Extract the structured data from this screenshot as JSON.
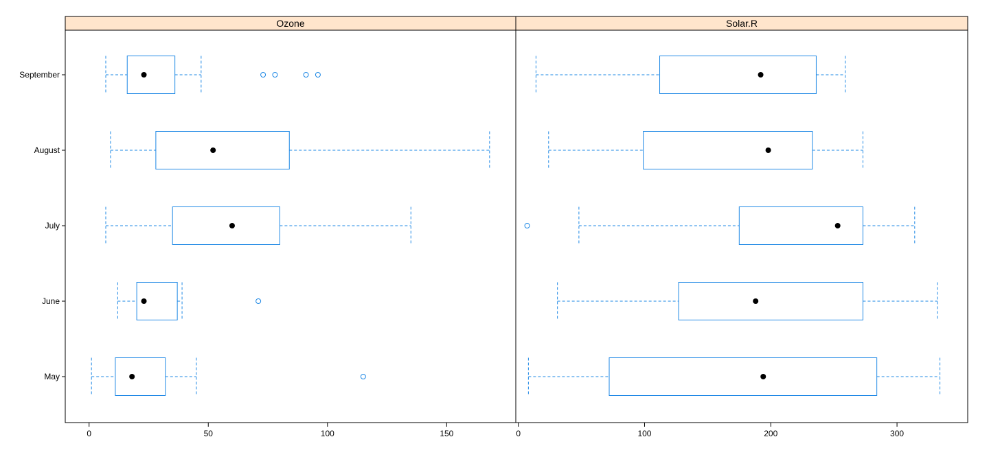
{
  "chart_data": {
    "type": "boxplot",
    "categories": [
      "May",
      "June",
      "July",
      "August",
      "September"
    ],
    "colors": {
      "box": "#1e88e5",
      "strip": "#ffe5cc",
      "median": "#000000"
    },
    "panels": [
      {
        "title": "Ozone",
        "xlim": [
          -10,
          179
        ],
        "ticks": [
          0,
          50,
          100,
          150
        ],
        "tick_labels": [
          "0",
          "50",
          "100",
          "150"
        ],
        "boxes": [
          {
            "category": "May",
            "min": 1,
            "q1": 11,
            "median": 18,
            "q3": 32,
            "max": 45,
            "outliers": [
              115
            ]
          },
          {
            "category": "June",
            "min": 12,
            "q1": 20,
            "median": 23,
            "q3": 37,
            "max": 39,
            "outliers": [
              71
            ]
          },
          {
            "category": "July",
            "min": 7,
            "q1": 35,
            "median": 60,
            "q3": 80,
            "max": 135,
            "outliers": []
          },
          {
            "category": "August",
            "min": 9,
            "q1": 28,
            "median": 52,
            "q3": 84,
            "max": 168,
            "outliers": []
          },
          {
            "category": "September",
            "min": 7,
            "q1": 16,
            "median": 23,
            "q3": 36,
            "max": 47,
            "outliers": [
              73,
              78,
              91,
              96
            ]
          }
        ]
      },
      {
        "title": "Solar.R",
        "xlim": [
          -2,
          356
        ],
        "ticks": [
          0,
          100,
          200,
          300
        ],
        "tick_labels": [
          "0",
          "100",
          "200",
          "300"
        ],
        "boxes": [
          {
            "category": "May",
            "min": 8,
            "q1": 72,
            "median": 194,
            "q3": 284,
            "max": 334,
            "outliers": []
          },
          {
            "category": "June",
            "min": 31,
            "q1": 127,
            "median": 188,
            "q3": 273,
            "max": 332,
            "outliers": []
          },
          {
            "category": "July",
            "min": 48,
            "q1": 175,
            "median": 253,
            "q3": 273,
            "max": 314,
            "outliers": [
              7
            ]
          },
          {
            "category": "August",
            "min": 24,
            "q1": 99,
            "median": 198,
            "q3": 233,
            "max": 273,
            "outliers": []
          },
          {
            "category": "September",
            "min": 14,
            "q1": 112,
            "median": 192,
            "q3": 236,
            "max": 259,
            "outliers": []
          }
        ]
      }
    ]
  }
}
